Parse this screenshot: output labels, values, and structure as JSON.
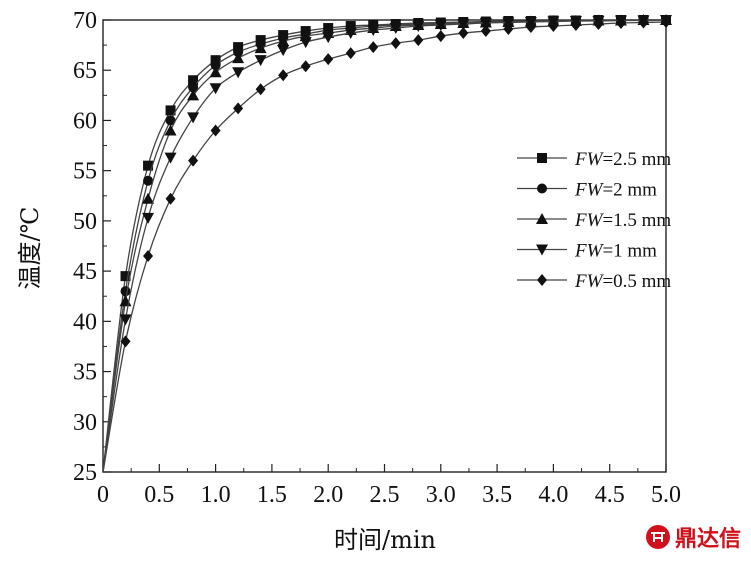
{
  "chart_data": {
    "type": "line",
    "xlabel": "时间/min",
    "ylabel": "温度/℃",
    "xlim": [
      0,
      5.0
    ],
    "ylim": [
      25,
      70
    ],
    "xticks": [
      "0",
      "0.5",
      "1.0",
      "1.5",
      "2.0",
      "2.5",
      "3.0",
      "3.5",
      "4.0",
      "4.5",
      "5.0"
    ],
    "yticks": [
      "25",
      "30",
      "35",
      "40",
      "45",
      "50",
      "55",
      "60",
      "65",
      "70"
    ],
    "grid": false,
    "legend_position": "right",
    "legend_prefix": "FW",
    "x": [
      0,
      0.2,
      0.4,
      0.6,
      0.8,
      1.0,
      1.2,
      1.4,
      1.6,
      1.8,
      2.0,
      2.2,
      2.4,
      2.6,
      2.8,
      3.0,
      3.2,
      3.4,
      3.6,
      3.8,
      4.0,
      4.2,
      4.4,
      4.6,
      4.8,
      5.0
    ],
    "series": [
      {
        "name": "=2.5 mm",
        "marker": "square",
        "values": [
          25.0,
          44.5,
          55.5,
          61.0,
          64.0,
          66.0,
          67.3,
          68.0,
          68.5,
          68.9,
          69.2,
          69.4,
          69.5,
          69.6,
          69.7,
          69.75,
          69.8,
          69.85,
          69.9,
          69.9,
          69.95,
          69.95,
          70.0,
          70.0,
          70.0,
          70.0
        ]
      },
      {
        "name": "=2 mm",
        "marker": "circle",
        "values": [
          25.0,
          43.0,
          54.0,
          60.0,
          63.3,
          65.5,
          66.8,
          67.6,
          68.2,
          68.6,
          69.0,
          69.2,
          69.4,
          69.5,
          69.6,
          69.7,
          69.75,
          69.8,
          69.85,
          69.9,
          69.9,
          69.95,
          69.95,
          70.0,
          70.0,
          70.0
        ]
      },
      {
        "name": "=1.5 mm",
        "marker": "triangle-up",
        "values": [
          25.0,
          42.0,
          52.2,
          59.0,
          62.5,
          64.8,
          66.2,
          67.2,
          67.9,
          68.4,
          68.7,
          69.0,
          69.2,
          69.4,
          69.5,
          69.6,
          69.7,
          69.75,
          69.8,
          69.85,
          69.9,
          69.9,
          69.95,
          69.95,
          70.0,
          70.0
        ]
      },
      {
        "name": "=1 mm",
        "marker": "triangle-down",
        "values": [
          25.0,
          40.2,
          50.3,
          56.3,
          60.3,
          63.2,
          64.8,
          66.0,
          67.0,
          67.8,
          68.3,
          68.7,
          69.0,
          69.2,
          69.4,
          69.5,
          69.6,
          69.7,
          69.75,
          69.8,
          69.85,
          69.9,
          69.9,
          69.95,
          69.95,
          70.0
        ]
      },
      {
        "name": "=0.5 mm",
        "marker": "diamond",
        "values": [
          25.0,
          38.0,
          46.5,
          52.2,
          56.0,
          59.0,
          61.2,
          63.1,
          64.5,
          65.4,
          66.1,
          66.7,
          67.3,
          67.7,
          68.0,
          68.4,
          68.7,
          68.9,
          69.1,
          69.3,
          69.4,
          69.5,
          69.6,
          69.7,
          69.75,
          69.8
        ]
      }
    ]
  },
  "watermark": {
    "text": "鼎达信"
  }
}
